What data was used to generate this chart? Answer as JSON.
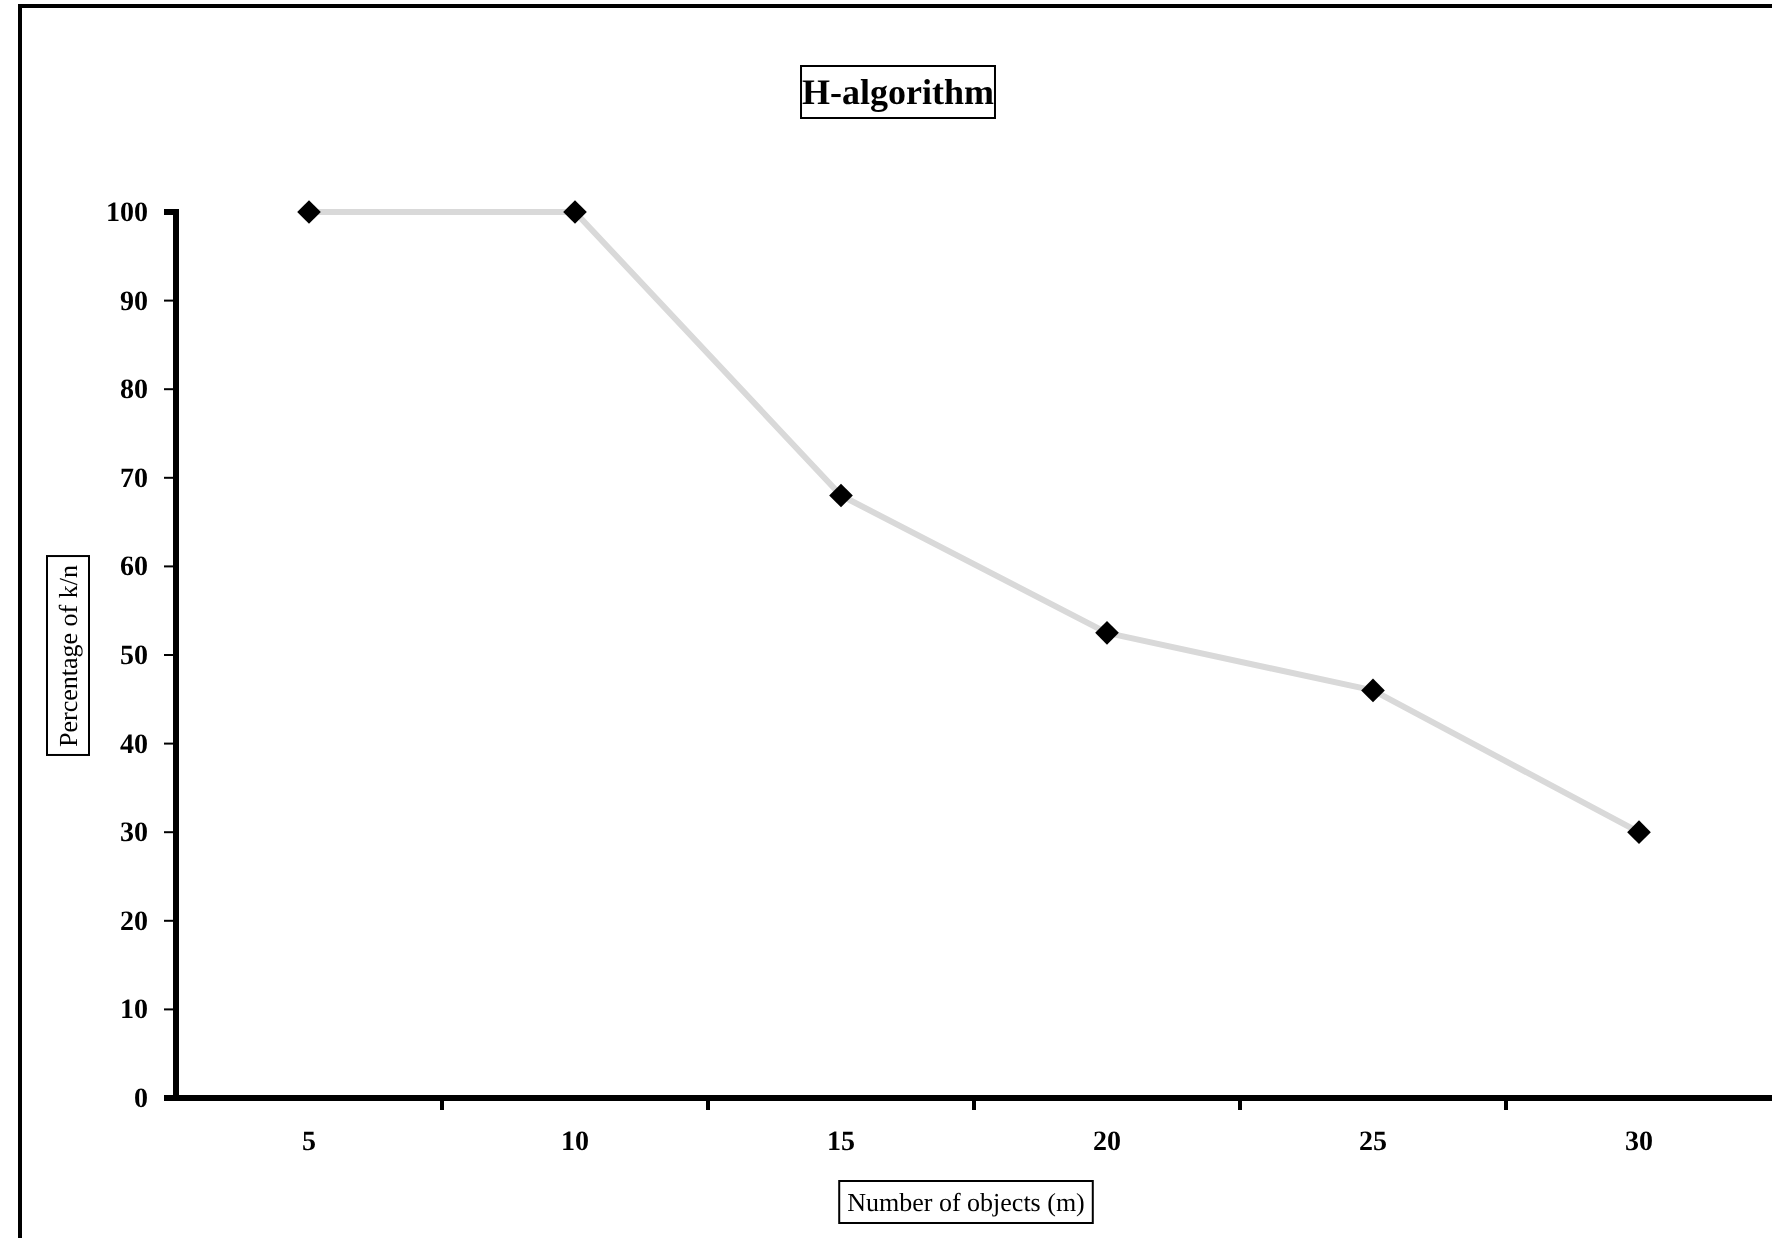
{
  "chart_data": {
    "type": "line",
    "title": "H-algorithm",
    "xlabel": "Number of objects (m)",
    "ylabel": "Percentage of k/n",
    "categories": [
      "5",
      "10",
      "15",
      "20",
      "25",
      "30"
    ],
    "series": [
      {
        "color": "#d9d9d9",
        "values": [
          100,
          100,
          68,
          52.5,
          46,
          30
        ]
      }
    ],
    "marker": "diamond",
    "ylim": [
      0,
      100
    ],
    "yticks": [
      0,
      10,
      20,
      30,
      40,
      50,
      60,
      70,
      80,
      90,
      100
    ],
    "grid": false
  }
}
